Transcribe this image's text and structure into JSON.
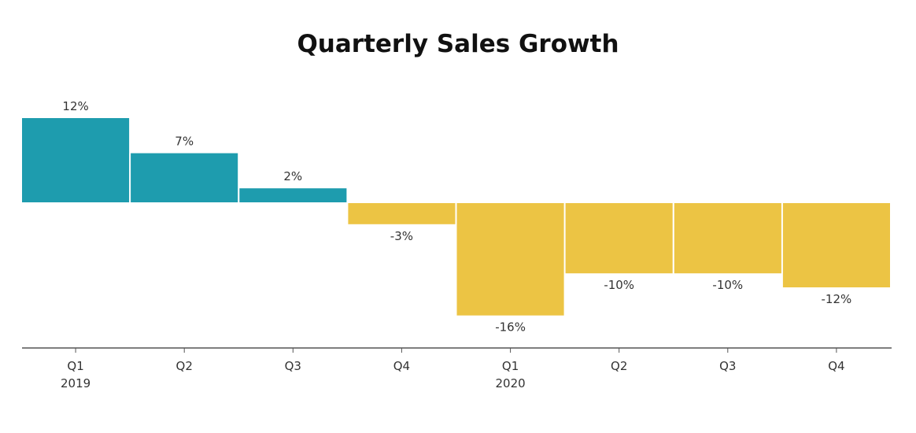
{
  "chart_data": {
    "type": "bar",
    "title": "Quarterly Sales Growth",
    "categories": [
      "Q1",
      "Q2",
      "Q3",
      "Q4",
      "Q1",
      "Q2",
      "Q3",
      "Q4"
    ],
    "years": [
      "2019",
      "",
      "",
      "",
      "2020",
      "",
      "",
      ""
    ],
    "values": [
      12,
      7,
      2,
      -3,
      -16,
      -10,
      -10,
      -12
    ],
    "labels": [
      "12%",
      "7%",
      "2%",
      "-3%",
      "-16%",
      "-10%",
      "-10%",
      "-12%"
    ],
    "ylim": [
      -20,
      14
    ],
    "grid": false,
    "colors": {
      "positive": "#1e9cae",
      "negative": "#ecc444",
      "axis": "#555555"
    }
  }
}
